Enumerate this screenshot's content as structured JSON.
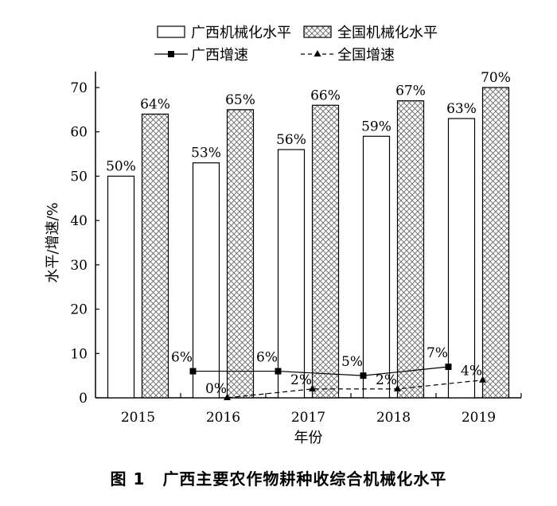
{
  "chart_data": {
    "type": "bar",
    "categories": [
      "2015",
      "2016",
      "2017",
      "2018",
      "2019"
    ],
    "series": [
      {
        "name": "广西机械化水平",
        "kind": "bar",
        "fill": "hollow",
        "values": [
          50,
          53,
          56,
          59,
          63
        ],
        "labels": [
          "50%",
          "53%",
          "56%",
          "59%",
          "63%"
        ]
      },
      {
        "name": "全国机械化水平",
        "kind": "bar",
        "fill": "crosshatch",
        "values": [
          64,
          65,
          66,
          67,
          70
        ],
        "labels": [
          "64%",
          "65%",
          "66%",
          "67%",
          "70%"
        ]
      },
      {
        "name": "广西增速",
        "kind": "line",
        "line_style": "solid",
        "marker": "square",
        "values": [
          null,
          6,
          6,
          5,
          7
        ],
        "labels": [
          "",
          "6%",
          "6%",
          "5%",
          "7%"
        ]
      },
      {
        "name": "全国增速",
        "kind": "line",
        "line_style": "dashed",
        "marker": "triangle",
        "values": [
          null,
          0,
          2,
          2,
          4
        ],
        "labels": [
          "",
          "0%",
          "2%",
          "2%",
          "4%"
        ]
      }
    ],
    "xlabel": "年份",
    "ylabel": "水平/增速/%",
    "ylim": [
      0,
      70
    ],
    "yticks": [
      0,
      10,
      20,
      30,
      40,
      50,
      60,
      70
    ],
    "grid": false,
    "legend_position": "top"
  },
  "caption": {
    "number": "图 1",
    "text": "广西主要农作物耕种收综合机械化水平"
  }
}
